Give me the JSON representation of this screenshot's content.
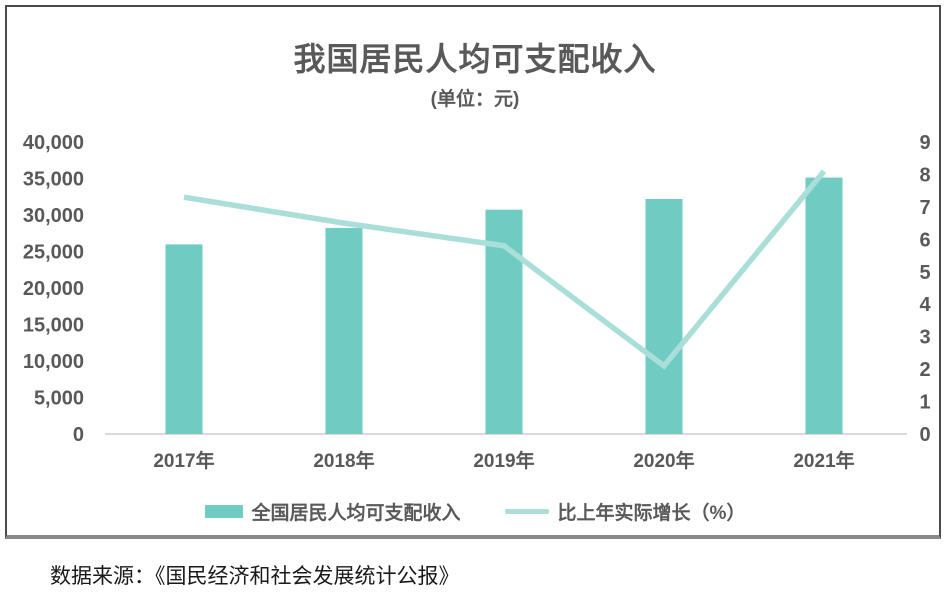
{
  "header": {
    "title": "我国居民人均可支配收入",
    "subtitle": "(单位：元)"
  },
  "legend": {
    "bar_label": "全国居民人均可支配收入",
    "line_label": "比上年实际增长（%）"
  },
  "footer": {
    "source": "数据来源：《国民经济和社会发展统计公报》"
  },
  "colors": {
    "bar": "#70ccc2",
    "line": "#a9dfd8",
    "text": "#595959",
    "baseline": "#d9d9d9",
    "frame_border": "#4c4c4c"
  },
  "chart_data": {
    "type": "bar",
    "title": "我国居民人均可支配收入",
    "subtitle": "(单位：元)",
    "categories": [
      "2017年",
      "2018年",
      "2019年",
      "2020年",
      "2021年"
    ],
    "series": [
      {
        "name": "全国居民人均可支配收入",
        "type": "bar",
        "axis": "left",
        "values": [
          25974,
          28228,
          30733,
          32189,
          35128
        ]
      },
      {
        "name": "比上年实际增长（%）",
        "type": "line",
        "axis": "right",
        "values": [
          7.3,
          6.5,
          5.8,
          2.1,
          8.1
        ]
      }
    ],
    "left_axis": {
      "min": 0,
      "max": 40000,
      "tick_step": 5000,
      "tick_labels": [
        "40,000",
        "35,000",
        "30,000",
        "25,000",
        "20,000",
        "15,000",
        "10,000",
        "5,000",
        "0"
      ]
    },
    "right_axis": {
      "min": 0,
      "max": 9,
      "tick_step": 1,
      "tick_labels": [
        "9",
        "8",
        "7",
        "6",
        "5",
        "4",
        "3",
        "2",
        "1",
        "0"
      ]
    },
    "grid": false,
    "legend_position": "bottom",
    "source": "数据来源：《国民经济和社会发展统计公报》"
  }
}
